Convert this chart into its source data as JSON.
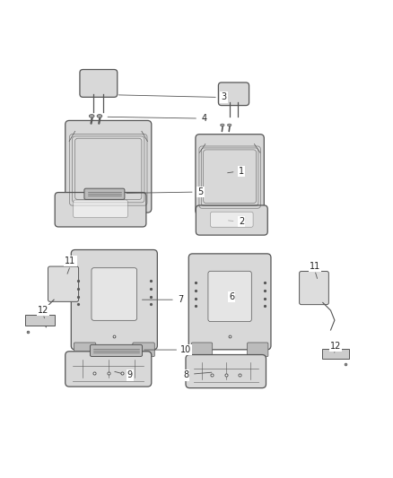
{
  "background_color": "#ffffff",
  "figure_width": 4.38,
  "figure_height": 5.33,
  "dpi": 100,
  "line_color": "#333333",
  "text_color": "#222222",
  "seat_color": "#d8d8d8",
  "seat_line_color": "#555555",
  "label_fontsize": 7,
  "leader_lw": 0.6
}
